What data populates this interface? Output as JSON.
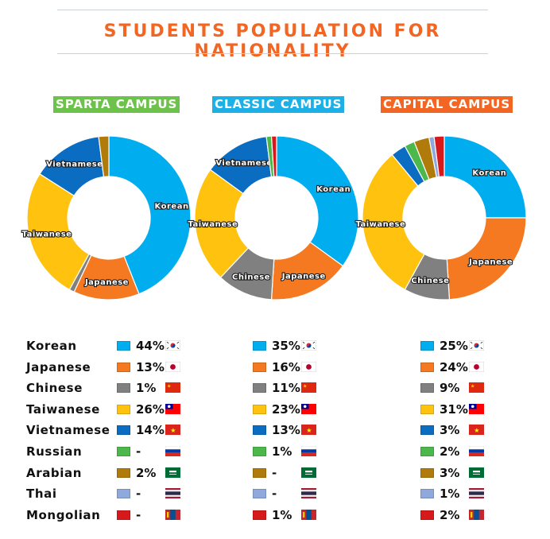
{
  "title": "STUDENTS POPULATION FOR NATIONALITY",
  "colors": {
    "title": "#f26522",
    "Korean": "#00aeef",
    "Japanese": "#f47920",
    "Chinese": "#808080",
    "Taiwanese": "#ffc20e",
    "Vietnamese": "#0a6dc2",
    "Russian": "#4cb74a",
    "Arabian": "#b07b0a",
    "Thai": "#8fa9dc",
    "Mongolian": "#d7191c"
  },
  "nationalities": [
    "Korean",
    "Japanese",
    "Chinese",
    "Taiwanese",
    "Vietnamese",
    "Russian",
    "Arabian",
    "Thai",
    "Mongolian"
  ],
  "flags": [
    "korea-flag-icon",
    "japan-flag-icon",
    "china-flag-icon",
    "taiwan-flag-icon",
    "vietnam-flag-icon",
    "russia-flag-icon",
    "saudi-arabia-flag-icon",
    "thailand-flag-icon",
    "mongolia-flag-icon"
  ],
  "chart_data": [
    {
      "type": "pie",
      "title": "SPARTA CAMPUS",
      "title_color": "#6cc24a",
      "categories": [
        "Korean",
        "Japanese",
        "Chinese",
        "Taiwanese",
        "Vietnamese",
        "Russian",
        "Arabian",
        "Thai",
        "Mongolian"
      ],
      "values": [
        44,
        13,
        1,
        26,
        14,
        0,
        2,
        0,
        0
      ],
      "display": [
        "44%",
        "13%",
        "1%",
        "26%",
        "14%",
        "-",
        "2%",
        "-",
        "-"
      ],
      "slice_labels": [
        "Korean",
        "Japanese",
        "",
        "Taiwanese",
        "Vietnamese",
        "",
        "",
        "",
        ""
      ]
    },
    {
      "type": "pie",
      "title": "CLASSIC CAMPUS",
      "title_color": "#1cb0e6",
      "categories": [
        "Korean",
        "Japanese",
        "Chinese",
        "Taiwanese",
        "Vietnamese",
        "Russian",
        "Arabian",
        "Thai",
        "Mongolian"
      ],
      "values": [
        35,
        16,
        11,
        23,
        13,
        1,
        0,
        0,
        1
      ],
      "display": [
        "35%",
        "16%",
        "11%",
        "23%",
        "13%",
        "1%",
        "-",
        "-",
        "1%"
      ],
      "slice_labels": [
        "Korean",
        "Japanese",
        "Chinese",
        "Taiwanese",
        "Vietnamese",
        "",
        "",
        "",
        ""
      ]
    },
    {
      "type": "pie",
      "title": "CAPITAL CAMPUS",
      "title_color": "#f26522",
      "categories": [
        "Korean",
        "Japanese",
        "Chinese",
        "Taiwanese",
        "Vietnamese",
        "Russian",
        "Arabian",
        "Thai",
        "Mongolian"
      ],
      "values": [
        25,
        24,
        9,
        31,
        3,
        2,
        3,
        1,
        2
      ],
      "display": [
        "25%",
        "24%",
        "9%",
        "31%",
        "3%",
        "2%",
        "3%",
        "1%",
        "2%"
      ],
      "slice_labels": [
        "Korean",
        "Japanese",
        "Chinese",
        "Taiwanese",
        "",
        "",
        "",
        "",
        ""
      ]
    }
  ]
}
